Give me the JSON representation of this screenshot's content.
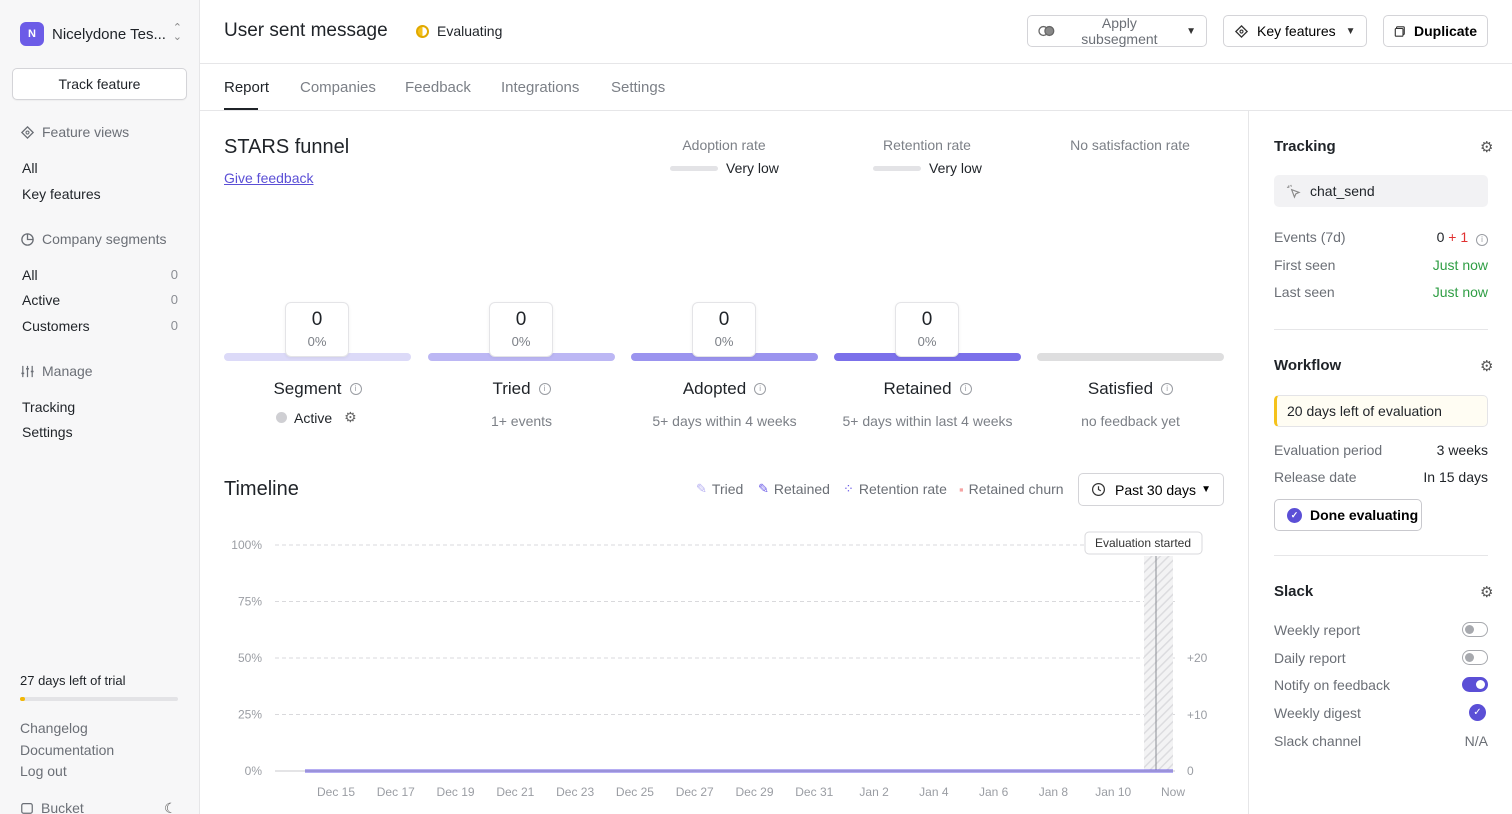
{
  "sidebar": {
    "workspace": {
      "initial": "N",
      "name": "Nicelydone Tes..."
    },
    "track_button": "Track feature",
    "feature_views": {
      "heading": "Feature views",
      "items": [
        "All",
        "Key features"
      ]
    },
    "company_segments": {
      "heading": "Company segments",
      "items": [
        {
          "label": "All",
          "count": "0"
        },
        {
          "label": "Active",
          "count": "0"
        },
        {
          "label": "Customers",
          "count": "0"
        }
      ]
    },
    "manage": {
      "heading": "Manage",
      "items": [
        "Tracking",
        "Settings"
      ]
    },
    "trial": {
      "text": "27 days left of trial",
      "progress": 0.03
    },
    "links": [
      "Changelog",
      "Documentation",
      "Log out"
    ],
    "bucket": "Bucket"
  },
  "header": {
    "title": "User sent message",
    "status": "Evaluating",
    "apply_subsegment": "Apply subsegment",
    "key_features": "Key features",
    "duplicate": "Duplicate"
  },
  "tabs": [
    "Report",
    "Companies",
    "Feedback",
    "Integrations",
    "Settings"
  ],
  "funnel": {
    "title": "STARS funnel",
    "give_feedback": "Give feedback",
    "rates": [
      {
        "label": "Adoption rate",
        "value": "Very low"
      },
      {
        "label": "Retention rate",
        "value": "Very low"
      },
      {
        "label": "No satisfaction rate",
        "value": ""
      }
    ],
    "stages": [
      {
        "name": "Segment",
        "count": "0",
        "pct": "0%",
        "sub": "",
        "color": "#dcdaf8"
      },
      {
        "name": "Tried",
        "count": "0",
        "pct": "0%",
        "sub": "1+ events",
        "color": "#bcb7f4"
      },
      {
        "name": "Adopted",
        "count": "0",
        "pct": "0%",
        "sub": "5+ days within 4 weeks",
        "color": "#9b94ef"
      },
      {
        "name": "Retained",
        "count": "0",
        "pct": "0%",
        "sub": "5+ days within last 4 weeks",
        "color": "#7b70ea"
      },
      {
        "name": "Satisfied",
        "count": "",
        "pct": "",
        "sub": "no feedback yet",
        "color": "#dededf"
      }
    ],
    "segment_active": "Active"
  },
  "timeline": {
    "title": "Timeline",
    "legend": [
      {
        "label": "Tried",
        "color": "#b8b2f2"
      },
      {
        "label": "Retained",
        "color": "#6c5ce7"
      },
      {
        "label": "Retention rate",
        "color": "#6c5ce7"
      },
      {
        "label": "Retained churn",
        "color": "#f5a3a3"
      }
    ],
    "range_button": "Past 30 days",
    "annotation": "Evaluation started"
  },
  "chart_data": {
    "type": "line",
    "x": [
      "Dec 15",
      "Dec 17",
      "Dec 19",
      "Dec 21",
      "Dec 23",
      "Dec 25",
      "Dec 27",
      "Dec 29",
      "Dec 31",
      "Jan 2",
      "Jan 4",
      "Jan 6",
      "Jan 8",
      "Jan 10",
      "Now"
    ],
    "y_left_ticks": [
      "100%",
      "75%",
      "50%",
      "25%",
      "0%"
    ],
    "y_right_ticks": [
      "+20",
      "+10",
      "0"
    ],
    "ylim": [
      0,
      100
    ],
    "series": [
      {
        "name": "Retained",
        "values": [
          0,
          0,
          0,
          0,
          0,
          0,
          0,
          0,
          0,
          0,
          0,
          0,
          0,
          0,
          0
        ]
      }
    ],
    "grid": true
  },
  "right_panel": {
    "tracking": {
      "title": "Tracking",
      "event": "chat_send",
      "events_label": "Events (7d)",
      "events_value": "0",
      "events_delta": "+ 1",
      "first_seen_label": "First seen",
      "first_seen_value": "Just now",
      "last_seen_label": "Last seen",
      "last_seen_value": "Just now"
    },
    "workflow": {
      "title": "Workflow",
      "eval_left": "20 days left of evaluation",
      "period_label": "Evaluation period",
      "period_value": "3 weeks",
      "release_label": "Release date",
      "release_value": "In 15 days",
      "done_button": "Done evaluating"
    },
    "slack": {
      "title": "Slack",
      "weekly_report": "Weekly report",
      "daily_report": "Daily report",
      "notify_feedback": "Notify on feedback",
      "weekly_digest": "Weekly digest",
      "channel_label": "Slack channel",
      "channel_value": "N/A"
    }
  }
}
